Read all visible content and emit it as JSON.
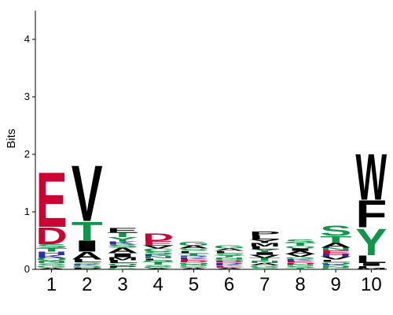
{
  "chart_data": {
    "type": "sequence-logo",
    "ylabel": "Bits",
    "ylim": [
      0,
      4.5
    ],
    "yticks": [
      "0",
      "1",
      "2",
      "3",
      "4"
    ],
    "positions": [
      "1",
      "2",
      "3",
      "4",
      "5",
      "6",
      "7",
      "8",
      "9",
      "10"
    ],
    "colors": {
      "acidic": "#cc0033",
      "polar": "#109648",
      "hydrophobic": "#000000",
      "basic": "#2e2ea8",
      "neutral": "#7a3b8f"
    },
    "stacks": [
      [
        [
          "A",
          0.03,
          "hydrophobic"
        ],
        [
          "G",
          0.04,
          "polar"
        ],
        [
          "S",
          0.04,
          "polar"
        ],
        [
          "N",
          0.04,
          "polar"
        ],
        [
          "Q",
          0.05,
          "polar"
        ],
        [
          "K",
          0.05,
          "basic"
        ],
        [
          "H",
          0.06,
          "basic"
        ],
        [
          "T",
          0.06,
          "polar"
        ],
        [
          "S",
          0.07,
          "polar"
        ],
        [
          "D",
          0.3,
          "acidic"
        ],
        [
          "E",
          0.98,
          "acidic"
        ]
      ],
      [
        [
          "P",
          0.03,
          "hydrophobic"
        ],
        [
          "Q",
          0.03,
          "polar"
        ],
        [
          "K",
          0.03,
          "basic"
        ],
        [
          "S",
          0.03,
          "polar"
        ],
        [
          "L",
          0.05,
          "hydrophobic"
        ],
        [
          "A",
          0.14,
          "hydrophobic"
        ],
        [
          "I",
          0.2,
          "hydrophobic"
        ],
        [
          "T",
          0.33,
          "polar"
        ],
        [
          "V",
          1.0,
          "hydrophobic"
        ]
      ],
      [
        [
          "G",
          0.03,
          "polar"
        ],
        [
          "P",
          0.04,
          "hydrophobic"
        ],
        [
          "Q",
          0.04,
          "polar"
        ],
        [
          "L",
          0.05,
          "hydrophobic"
        ],
        [
          "M",
          0.05,
          "hydrophobic"
        ],
        [
          "I",
          0.07,
          "hydrophobic"
        ],
        [
          "A",
          0.1,
          "hydrophobic"
        ],
        [
          "S",
          0.05,
          "polar"
        ],
        [
          "K",
          0.05,
          "basic"
        ],
        [
          "Y",
          0.08,
          "polar"
        ],
        [
          "T",
          0.08,
          "polar"
        ],
        [
          "E",
          0.08,
          "hydrophobic"
        ]
      ],
      [
        [
          "A",
          0.02,
          "hydrophobic"
        ],
        [
          "G",
          0.03,
          "polar"
        ],
        [
          "S",
          0.03,
          "polar"
        ],
        [
          "T",
          0.05,
          "polar"
        ],
        [
          "Q",
          0.03,
          "polar"
        ],
        [
          "L",
          0.03,
          "hydrophobic"
        ],
        [
          "N",
          0.04,
          "polar"
        ],
        [
          "K",
          0.03,
          "basic"
        ],
        [
          "S",
          0.05,
          "polar"
        ],
        [
          "C",
          0.05,
          "polar"
        ],
        [
          "V",
          0.05,
          "hydrophobic"
        ],
        [
          "E",
          0.08,
          "acidic"
        ],
        [
          "D",
          0.14,
          "acidic"
        ]
      ],
      [
        [
          "A",
          0.03,
          "hydrophobic"
        ],
        [
          "G",
          0.03,
          "polar"
        ],
        [
          "N",
          0.03,
          "polar"
        ],
        [
          "Q",
          0.03,
          "polar"
        ],
        [
          "D",
          0.03,
          "acidic"
        ],
        [
          "E",
          0.03,
          "acidic"
        ],
        [
          "K",
          0.03,
          "basic"
        ],
        [
          "R",
          0.03,
          "basic"
        ],
        [
          "T",
          0.04,
          "polar"
        ],
        [
          "L",
          0.04,
          "hydrophobic"
        ],
        [
          "S",
          0.04,
          "polar"
        ],
        [
          "A",
          0.05,
          "hydrophobic"
        ],
        [
          "G",
          0.07,
          "polar"
        ]
      ],
      [
        [
          "A",
          0.03,
          "hydrophobic"
        ],
        [
          "E",
          0.03,
          "acidic"
        ],
        [
          "K",
          0.03,
          "basic"
        ],
        [
          "R",
          0.03,
          "basic"
        ],
        [
          "D",
          0.03,
          "acidic"
        ],
        [
          "Q",
          0.03,
          "polar"
        ],
        [
          "N",
          0.03,
          "polar"
        ],
        [
          "T",
          0.03,
          "polar"
        ],
        [
          "S",
          0.04,
          "polar"
        ],
        [
          "L",
          0.04,
          "hydrophobic"
        ],
        [
          "A",
          0.04,
          "hydrophobic"
        ],
        [
          "G",
          0.05,
          "polar"
        ]
      ],
      [
        [
          "S",
          0.03,
          "polar"
        ],
        [
          "G",
          0.04,
          "polar"
        ],
        [
          "A",
          0.04,
          "hydrophobic"
        ],
        [
          "N",
          0.04,
          "polar"
        ],
        [
          "T",
          0.05,
          "polar"
        ],
        [
          "V",
          0.05,
          "hydrophobic"
        ],
        [
          "I",
          0.05,
          "hydrophobic"
        ],
        [
          "Y",
          0.05,
          "polar"
        ],
        [
          "L",
          0.05,
          "hydrophobic"
        ],
        [
          "M",
          0.06,
          "hydrophobic"
        ],
        [
          "Y",
          0.06,
          "hydrophobic"
        ],
        [
          "L",
          0.07,
          "hydrophobic"
        ],
        [
          "P",
          0.07,
          "hydrophobic"
        ]
      ],
      [
        [
          "T",
          0.03,
          "polar"
        ],
        [
          "S",
          0.03,
          "polar"
        ],
        [
          "N",
          0.03,
          "polar"
        ],
        [
          "D",
          0.03,
          "acidic"
        ],
        [
          "E",
          0.03,
          "acidic"
        ],
        [
          "K",
          0.03,
          "basic"
        ],
        [
          "G",
          0.04,
          "polar"
        ],
        [
          "V",
          0.05,
          "hydrophobic"
        ],
        [
          "A",
          0.05,
          "hydrophobic"
        ],
        [
          "I",
          0.05,
          "hydrophobic"
        ],
        [
          "Q",
          0.04,
          "polar"
        ],
        [
          "T",
          0.05,
          "polar"
        ],
        [
          "S",
          0.06,
          "polar"
        ]
      ],
      [
        [
          "G",
          0.03,
          "polar"
        ],
        [
          "N",
          0.03,
          "polar"
        ],
        [
          "K",
          0.03,
          "basic"
        ],
        [
          "Q",
          0.04,
          "polar"
        ],
        [
          "L",
          0.04,
          "hydrophobic"
        ],
        [
          "V",
          0.05,
          "hydrophobic"
        ],
        [
          "H",
          0.05,
          "basic"
        ],
        [
          "E",
          0.06,
          "acidic"
        ],
        [
          "N",
          0.05,
          "polar"
        ],
        [
          "A",
          0.08,
          "hydrophobic"
        ],
        [
          "T",
          0.12,
          "polar"
        ],
        [
          "S",
          0.18,
          "polar"
        ]
      ],
      [
        [
          "M",
          0.02,
          "hydrophobic"
        ],
        [
          "L",
          0.04,
          "hydrophobic"
        ],
        [
          "I",
          0.05,
          "hydrophobic"
        ],
        [
          "L",
          0.14,
          "hydrophobic"
        ],
        [
          "Y",
          0.48,
          "polar"
        ],
        [
          "F",
          0.48,
          "hydrophobic"
        ],
        [
          "W",
          0.82,
          "hydrophobic"
        ]
      ]
    ]
  }
}
